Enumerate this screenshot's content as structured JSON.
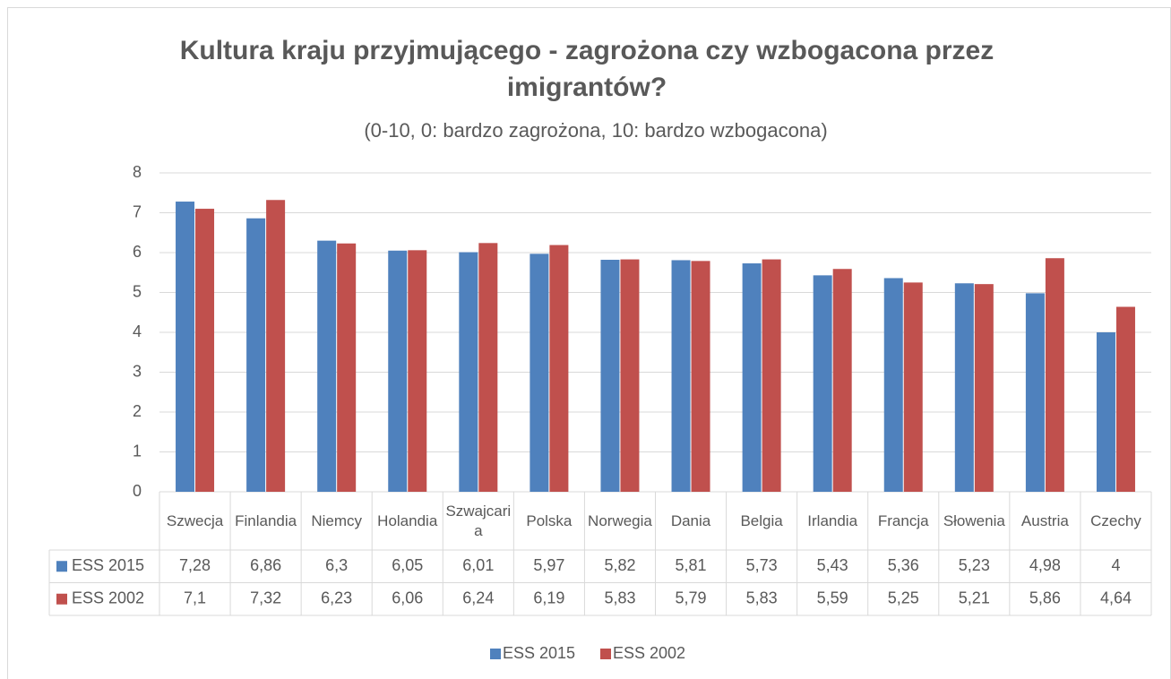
{
  "chart_data": {
    "type": "bar",
    "title": "Kultura kraju przyjmującego - zagrożona czy wzbogacona przez imigrantów?",
    "subtitle": "(0-10, 0: bardzo zagrożona, 10: bardzo wzbogacona)",
    "categories": [
      "Szwecja",
      "Finlandia",
      "Niemcy",
      "Holandia",
      "Szwajcaria",
      "Polska",
      "Norwegia",
      "Dania",
      "Belgia",
      "Irlandia",
      "Francja",
      "Słowenia",
      "Austria",
      "Czechy"
    ],
    "series": [
      {
        "name": "ESS 2015",
        "color": "#4f81bd",
        "values": [
          7.28,
          6.86,
          6.3,
          6.05,
          6.01,
          5.97,
          5.82,
          5.81,
          5.73,
          5.43,
          5.36,
          5.23,
          4.98,
          4
        ],
        "value_labels": [
          "7,28",
          "6,86",
          "6,3",
          "6,05",
          "6,01",
          "5,97",
          "5,82",
          "5,81",
          "5,73",
          "5,43",
          "5,36",
          "5,23",
          "4,98",
          "4"
        ]
      },
      {
        "name": "ESS 2002",
        "color": "#c0504d",
        "values": [
          7.1,
          7.32,
          6.23,
          6.06,
          6.24,
          6.19,
          5.83,
          5.79,
          5.83,
          5.59,
          5.25,
          5.21,
          5.86,
          4.64
        ],
        "value_labels": [
          "7,1",
          "7,32",
          "6,23",
          "6,06",
          "6,24",
          "6,19",
          "5,83",
          "5,79",
          "5,83",
          "5,59",
          "5,25",
          "5,21",
          "5,86",
          "4,64"
        ]
      }
    ],
    "ylim": [
      0,
      8
    ],
    "yticks": [
      0,
      1,
      2,
      3,
      4,
      5,
      6,
      7,
      8
    ],
    "grid": true,
    "legend": "bottom"
  }
}
